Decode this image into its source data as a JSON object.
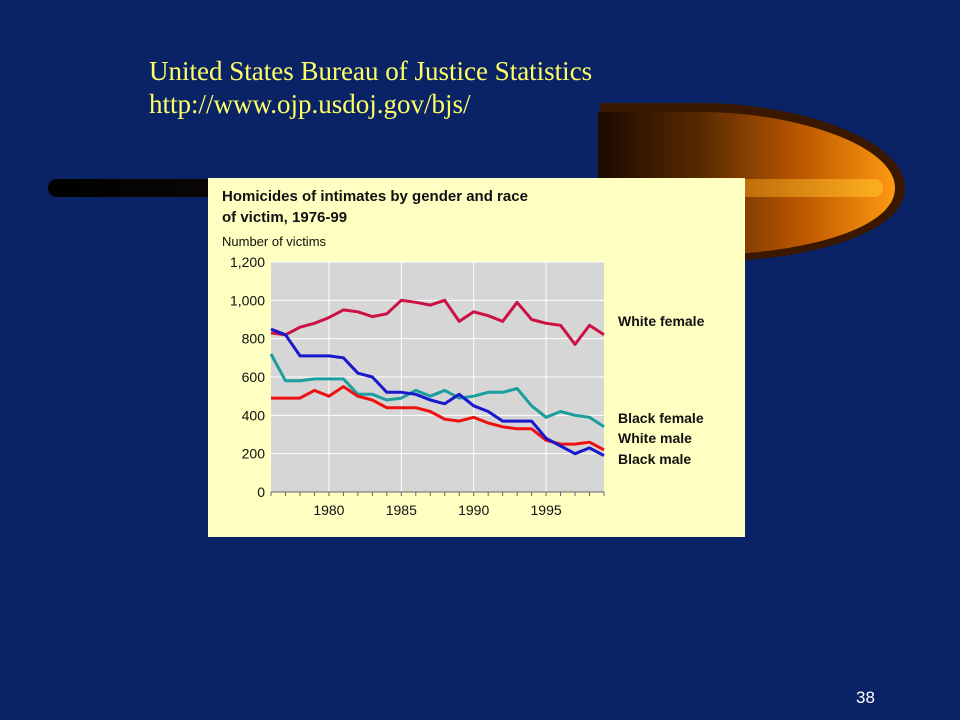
{
  "slide": {
    "source_title": "United States Bureau of Justice Statistics",
    "source_url": "http://www.ojp.usdoj.gov/bjs/",
    "page_number": "38"
  },
  "colors": {
    "background": "#0a2366",
    "heading_text": "#ffff66",
    "chart_panel": "#ffffc2",
    "plot_area": "#d6d6d6"
  },
  "chart_data": {
    "type": "line",
    "title_line1": "Homicides of intimates by gender and race",
    "title_line2": "of victim, 1976-99",
    "ylabel": "Number of victims",
    "xlabel": "",
    "xlim": [
      1976,
      1999
    ],
    "ylim": [
      0,
      1200
    ],
    "x_ticks": [
      1980,
      1985,
      1990,
      1995
    ],
    "x_tick_labels": [
      "1980",
      "1985",
      "1990",
      "1995"
    ],
    "y_ticks": [
      0,
      200,
      400,
      600,
      800,
      1000,
      1200
    ],
    "y_tick_labels": [
      "0",
      "200",
      "400",
      "600",
      "800",
      "1,000",
      "1,200"
    ],
    "grid": true,
    "legend_placement": "right, labels at line ends",
    "x": [
      1976,
      1977,
      1978,
      1979,
      1980,
      1981,
      1982,
      1983,
      1984,
      1985,
      1986,
      1987,
      1988,
      1989,
      1990,
      1991,
      1992,
      1993,
      1994,
      1995,
      1996,
      1997,
      1998,
      1999
    ],
    "series": [
      {
        "name": "White female",
        "color": "#cc1144",
        "values": [
          830,
          820,
          860,
          880,
          910,
          950,
          940,
          915,
          930,
          1000,
          990,
          975,
          1000,
          890,
          940,
          920,
          890,
          990,
          900,
          880,
          870,
          770,
          870,
          820
        ]
      },
      {
        "name": "Black female",
        "color": "#1a9e9e",
        "values": [
          720,
          580,
          580,
          590,
          590,
          590,
          510,
          510,
          480,
          490,
          530,
          500,
          530,
          490,
          500,
          520,
          520,
          540,
          450,
          390,
          420,
          400,
          390,
          340
        ]
      },
      {
        "name": "White male",
        "color": "#ee1111",
        "values": [
          490,
          490,
          490,
          530,
          500,
          550,
          500,
          480,
          440,
          440,
          440,
          420,
          380,
          370,
          390,
          360,
          340,
          330,
          330,
          270,
          250,
          250,
          260,
          220
        ]
      },
      {
        "name": "Black male",
        "color": "#1818cc",
        "values": [
          850,
          820,
          710,
          710,
          710,
          700,
          620,
          600,
          520,
          520,
          510,
          480,
          460,
          510,
          450,
          420,
          370,
          370,
          370,
          280,
          240,
          200,
          230,
          190
        ]
      }
    ]
  }
}
